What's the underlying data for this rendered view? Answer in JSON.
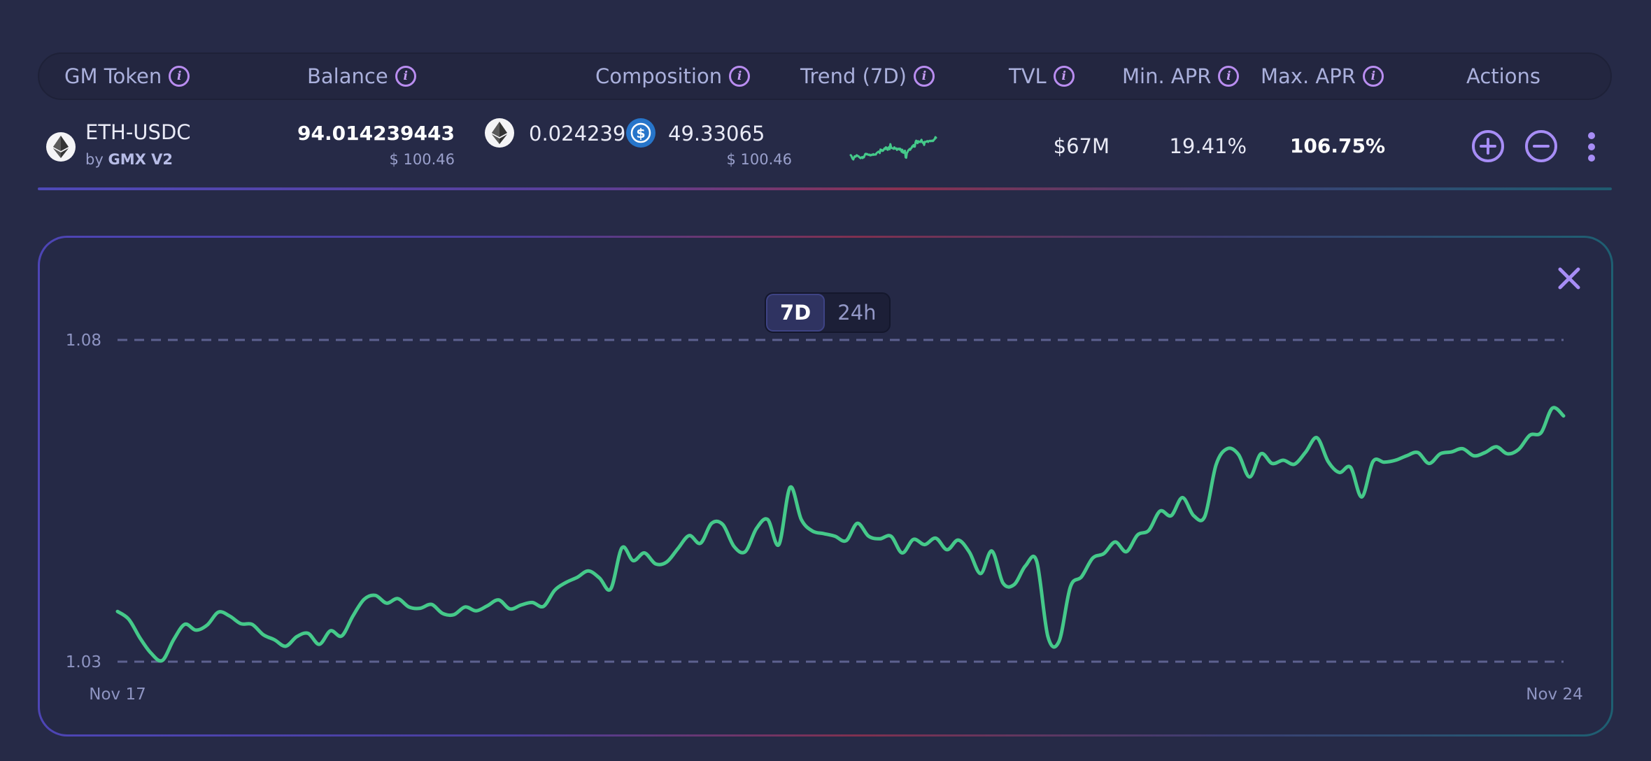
{
  "table": {
    "columns": [
      {
        "label": "GM Token",
        "info": true
      },
      {
        "label": "Balance",
        "info": true
      },
      {
        "label": "Composition",
        "info": true
      },
      {
        "label": "Trend (7D)",
        "info": true
      },
      {
        "label": "TVL",
        "info": true
      },
      {
        "label": "Min. APR",
        "info": true
      },
      {
        "label": "Max. APR",
        "info": true
      },
      {
        "label": "Actions",
        "info": false
      }
    ],
    "row": {
      "token_name": "ETH-USDC",
      "by_prefix": "by",
      "provider": "GMX V2",
      "balance": "94.014239443",
      "balance_usd": "$ 100.46",
      "composition_eth": "0.024239",
      "composition_usdc": "49.33065",
      "composition_usd": "$ 100.46",
      "tvl": "$67M",
      "min_apr": "19.41%",
      "max_apr": "106.75%"
    }
  },
  "chart_panel": {
    "tabs": [
      {
        "label": "7D",
        "active": true
      },
      {
        "label": "24h",
        "active": false
      }
    ]
  },
  "colors": {
    "accent": "#a78df6",
    "line": "#45c98a",
    "background": "#262a47"
  },
  "icons": [
    "info-icon",
    "eth-icon",
    "usdc-icon",
    "add-circle-icon",
    "remove-circle-icon",
    "more-vertical-icon",
    "close-icon"
  ],
  "chart_data": {
    "type": "line",
    "x_start": "Nov 17",
    "x_end": "Nov 24",
    "xticks": [
      "Nov 17",
      "Nov 24"
    ],
    "yticks": [
      "1.08",
      "1.03"
    ],
    "ylim": [
      1.03,
      1.08
    ],
    "grid": true,
    "values": [
      1.0378,
      1.0366,
      1.0337,
      1.0313,
      1.0302,
      1.0334,
      1.0358,
      1.0349,
      1.0357,
      1.0377,
      1.0371,
      1.0359,
      1.0358,
      1.0342,
      1.0334,
      1.0324,
      1.0339,
      1.0344,
      1.0327,
      1.0348,
      1.034,
      1.0371,
      1.0397,
      1.0403,
      1.0391,
      1.0398,
      1.0385,
      1.0383,
      1.0389,
      1.0375,
      1.0373,
      1.0385,
      1.0379,
      1.0387,
      1.0396,
      1.0382,
      1.0388,
      1.0392,
      1.0386,
      1.0411,
      1.0423,
      1.0431,
      1.0441,
      1.043,
      1.0413,
      1.0477,
      1.0457,
      1.0469,
      1.0452,
      1.0455,
      1.0476,
      1.0496,
      1.0484,
      1.0515,
      1.0513,
      1.0479,
      1.0471,
      1.0507,
      1.0521,
      1.0482,
      1.0571,
      1.0521,
      1.0503,
      1.0499,
      1.0495,
      1.0488,
      1.0515,
      1.0495,
      1.0491,
      1.0495,
      1.0469,
      1.049,
      1.0482,
      1.0492,
      1.0474,
      1.0489,
      1.047,
      1.0437,
      1.0472,
      1.0422,
      1.042,
      1.0449,
      1.0456,
      1.0339,
      1.0332,
      1.0416,
      1.0432,
      1.0461,
      1.0468,
      1.0486,
      1.0471,
      1.0497,
      1.0504,
      1.0534,
      1.0527,
      1.0555,
      1.0527,
      1.0526,
      1.0606,
      1.0631,
      1.0622,
      1.0587,
      1.0623,
      1.0608,
      1.0613,
      1.0607,
      1.0626,
      1.0648,
      1.0611,
      1.0594,
      1.0602,
      1.0556,
      1.0611,
      1.061,
      1.0613,
      1.062,
      1.0625,
      1.0608,
      1.0623,
      1.0626,
      1.0631,
      1.062,
      1.0625,
      1.0634,
      1.0623,
      1.063,
      1.0652,
      1.0656,
      1.0694,
      1.0682
    ]
  }
}
